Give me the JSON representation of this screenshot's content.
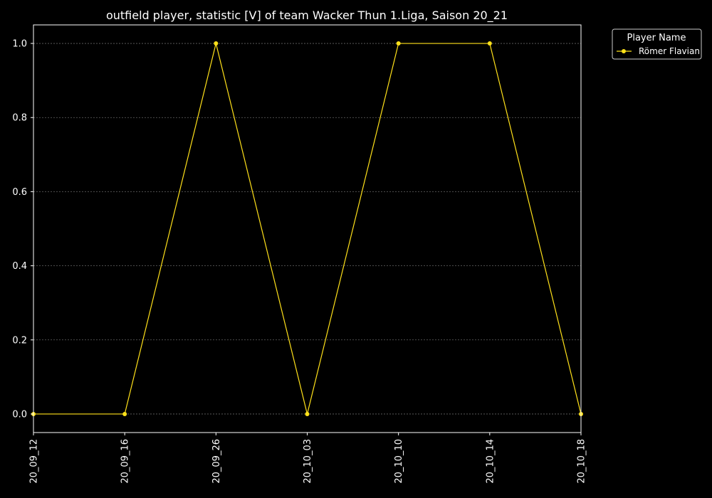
{
  "chart_data": {
    "type": "line",
    "title": "outfield player, statistic [V] of team Wacker Thun 1.Liga, Saison 20_21",
    "xlabel": "",
    "ylabel": "",
    "categories": [
      "20_09_12",
      "20_09_16",
      "20_09_26",
      "20_10_03",
      "20_10_10",
      "20_10_14",
      "20_10_18"
    ],
    "series": [
      {
        "name": "Römer Flavian",
        "color": "#ffe11a",
        "values": [
          0,
          0,
          1,
          0,
          1,
          1,
          0
        ]
      }
    ],
    "ylim": [
      -0.05,
      1.05
    ],
    "yticks": [
      "0.0",
      "0.2",
      "0.4",
      "0.6",
      "0.8",
      "1.0"
    ],
    "grid": true,
    "legend": {
      "title": "Player Name",
      "position": "outside-top-right"
    }
  },
  "colors": {
    "background": "#000000",
    "axes": "#ffffff",
    "grid": "#666666",
    "series": "#ffe11a"
  }
}
